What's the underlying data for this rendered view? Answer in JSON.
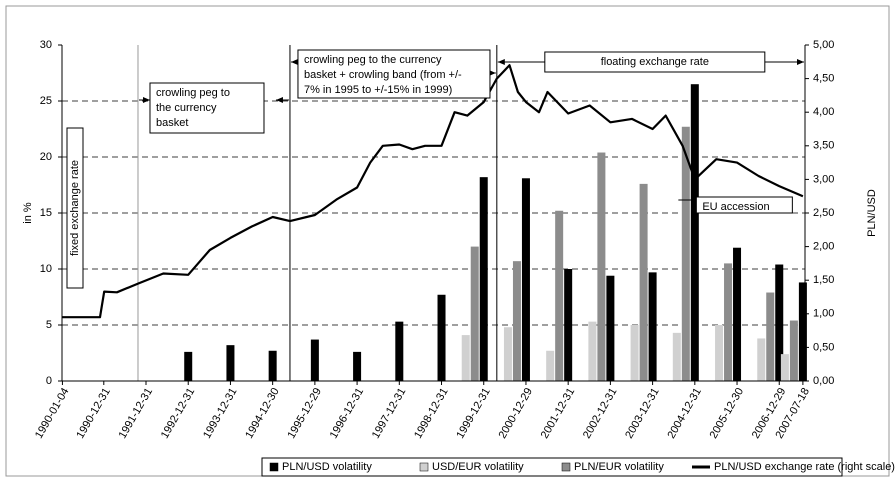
{
  "chart_data": {
    "type": "combo",
    "y_label": "in %",
    "y2_label": "PLN/USD",
    "xlim": [
      1990.0,
      2007.6
    ],
    "xticks": [
      {
        "value": 1990.01,
        "label": "1990-01-04"
      },
      {
        "value": 1990.99,
        "label": "1990-12-31"
      },
      {
        "value": 1991.99,
        "label": "1991-12-31"
      },
      {
        "value": 1992.99,
        "label": "1992-12-31"
      },
      {
        "value": 1993.99,
        "label": "1993-12-31"
      },
      {
        "value": 1994.99,
        "label": "1994-12-30"
      },
      {
        "value": 1995.99,
        "label": "1995-12-29"
      },
      {
        "value": 1996.99,
        "label": "1996-12-31"
      },
      {
        "value": 1997.99,
        "label": "1997-12-31"
      },
      {
        "value": 1998.99,
        "label": "1998-12-31"
      },
      {
        "value": 1999.99,
        "label": "1999-12-31"
      },
      {
        "value": 2000.99,
        "label": "2000-12-29"
      },
      {
        "value": 2001.99,
        "label": "2001-12-31"
      },
      {
        "value": 2002.99,
        "label": "2002-12-31"
      },
      {
        "value": 2003.99,
        "label": "2003-12-31"
      },
      {
        "value": 2004.99,
        "label": "2004-12-31"
      },
      {
        "value": 2005.99,
        "label": "2005-12-30"
      },
      {
        "value": 2006.99,
        "label": "2006-12-29"
      },
      {
        "value": 2007.55,
        "label": "2007-07-18"
      }
    ],
    "ylim": [
      0,
      30
    ],
    "yticks": [
      0,
      5,
      10,
      15,
      20,
      25,
      30
    ],
    "y2lim": [
      0,
      5
    ],
    "y2ticks": [
      {
        "value": 0,
        "label": "0,00"
      },
      {
        "value": 0.5,
        "label": "0,50"
      },
      {
        "value": 1,
        "label": "1,00"
      },
      {
        "value": 1.5,
        "label": "1,50"
      },
      {
        "value": 2,
        "label": "2,00"
      },
      {
        "value": 2.5,
        "label": "2,50"
      },
      {
        "value": 3,
        "label": "3,00"
      },
      {
        "value": 3.5,
        "label": "3,50"
      },
      {
        "value": 4,
        "label": "4,00"
      },
      {
        "value": 4.5,
        "label": "4,50"
      },
      {
        "value": 5,
        "label": "5,00"
      }
    ],
    "grid": true,
    "series": [
      {
        "name": "PLN/USD volatility",
        "type": "bar",
        "color": "#000000",
        "x": [
          1992.99,
          1993.99,
          1994.99,
          1995.99,
          1996.99,
          1997.99,
          1998.99,
          1999.99,
          2000.99,
          2001.99,
          2002.99,
          2003.99,
          2004.99,
          2005.99,
          2006.99,
          2007.55
        ],
        "values": [
          2.6,
          3.2,
          2.7,
          3.7,
          2.6,
          5.3,
          7.7,
          18.2,
          18.1,
          10.0,
          9.4,
          9.7,
          26.5,
          11.9,
          10.4,
          8.8
        ]
      },
      {
        "name": "USD/EUR volatility",
        "type": "bar",
        "color": "#d0d0d0",
        "x": [
          1992.99,
          1993.99,
          1994.99,
          1995.99,
          1996.99,
          1997.99,
          1998.99,
          1999.99,
          2000.99,
          2001.99,
          2002.99,
          2003.99,
          2004.99,
          2005.99,
          2006.99,
          2007.55
        ],
        "values": [
          null,
          null,
          null,
          null,
          null,
          null,
          null,
          4.1,
          4.8,
          2.7,
          5.3,
          5.0,
          4.3,
          5.0,
          3.8,
          2.4
        ]
      },
      {
        "name": "PLN/EUR volatility",
        "type": "bar",
        "color": "#8c8c8c",
        "x": [
          1992.99,
          1993.99,
          1994.99,
          1995.99,
          1996.99,
          1997.99,
          1998.99,
          1999.99,
          2000.99,
          2001.99,
          2002.99,
          2003.99,
          2004.99,
          2005.99,
          2006.99,
          2007.55
        ],
        "values": [
          null,
          null,
          null,
          null,
          null,
          null,
          null,
          12.0,
          10.7,
          15.2,
          20.4,
          17.6,
          22.7,
          10.5,
          7.9,
          5.4
        ]
      },
      {
        "name": "PLN/USD exchange rate (right scale)",
        "type": "line",
        "axis": "y2",
        "color": "#000000",
        "x": [
          1990.01,
          1990.9,
          1991.0,
          1991.3,
          1991.8,
          1992.4,
          1992.99,
          1993.5,
          1993.99,
          1994.5,
          1994.99,
          1995.4,
          1995.99,
          1996.5,
          1996.99,
          1997.3,
          1997.6,
          1997.99,
          1998.3,
          1998.6,
          1998.99,
          1999.3,
          1999.6,
          1999.99,
          2000.3,
          2000.6,
          2000.8,
          2000.99,
          2001.3,
          2001.5,
          2001.99,
          2002.5,
          2002.99,
          2003.5,
          2003.99,
          2004.3,
          2004.7,
          2004.99,
          2005.5,
          2005.99,
          2006.5,
          2006.99,
          2007.55
        ],
        "values": [
          0.95,
          0.95,
          1.33,
          1.32,
          1.45,
          1.6,
          1.58,
          1.95,
          2.13,
          2.3,
          2.44,
          2.38,
          2.47,
          2.7,
          2.88,
          3.25,
          3.5,
          3.52,
          3.45,
          3.5,
          3.5,
          4.0,
          3.95,
          4.15,
          4.5,
          4.7,
          4.3,
          4.15,
          4.0,
          4.3,
          3.98,
          4.1,
          3.85,
          3.9,
          3.75,
          3.95,
          3.5,
          3.0,
          3.3,
          3.25,
          3.05,
          2.9,
          2.75
        ]
      }
    ],
    "regime_changes": [
      1991.8,
      1995.4,
      2000.3
    ],
    "annotations": [
      {
        "lines": [
          "fixed exchange rate"
        ]
      },
      {
        "lines": [
          "crowling peg to",
          " the currency",
          "basket"
        ]
      },
      {
        "lines": [
          "crowling peg to the currency",
          "basket + crowling band (from +/-",
          "7% in 1995 to +/-15% in 1999)"
        ]
      },
      {
        "lines": [
          "floating exchange rate"
        ]
      },
      {
        "lines": [
          "EU accession"
        ]
      }
    ],
    "legend": "bottom"
  }
}
